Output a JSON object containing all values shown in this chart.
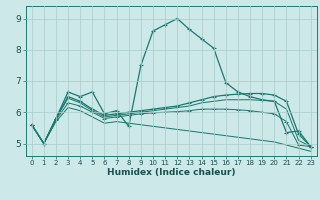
{
  "xlabel": "Humidex (Indice chaleur)",
  "bg_color": "#cce8e8",
  "grid_color": "#aacccc",
  "line_color": "#1a7a6e",
  "xlim": [
    -0.5,
    23.5
  ],
  "ylim": [
    4.6,
    9.4
  ],
  "xticks": [
    0,
    1,
    2,
    3,
    4,
    5,
    6,
    7,
    8,
    9,
    10,
    11,
    12,
    13,
    14,
    15,
    16,
    17,
    18,
    19,
    20,
    21,
    22,
    23
  ],
  "yticks": [
    5,
    6,
    7,
    8,
    9
  ],
  "line_peak": {
    "x": [
      0,
      1,
      2,
      3,
      4,
      5,
      6,
      7,
      8,
      9,
      10,
      11,
      12,
      13,
      14,
      15,
      16,
      17,
      18,
      19,
      20,
      21,
      22,
      23
    ],
    "y": [
      5.6,
      5.0,
      5.8,
      6.65,
      6.5,
      6.65,
      5.95,
      6.05,
      5.55,
      7.5,
      8.6,
      8.8,
      9.0,
      8.65,
      8.35,
      8.05,
      6.95,
      6.65,
      6.5,
      6.4,
      6.35,
      5.35,
      5.4,
      4.9
    ]
  },
  "line_up1": {
    "x": [
      0,
      1,
      2,
      3,
      4,
      5,
      6,
      7,
      8,
      9,
      10,
      11,
      12,
      13,
      14,
      15,
      16,
      17,
      18,
      19,
      20,
      21,
      22,
      23
    ],
    "y": [
      5.6,
      5.0,
      5.8,
      6.5,
      6.35,
      6.1,
      5.9,
      5.95,
      6.0,
      6.05,
      6.1,
      6.15,
      6.2,
      6.3,
      6.4,
      6.5,
      6.55,
      6.58,
      6.6,
      6.6,
      6.55,
      6.35,
      5.3,
      4.9
    ]
  },
  "line_up2": {
    "x": [
      0,
      1,
      2,
      3,
      4,
      5,
      6,
      7,
      8,
      9,
      10,
      11,
      12,
      13,
      14,
      15,
      16,
      17,
      18,
      19,
      20,
      21,
      22,
      23
    ],
    "y": [
      5.6,
      5.0,
      5.8,
      6.45,
      6.3,
      6.05,
      5.85,
      5.9,
      5.95,
      6.0,
      6.05,
      6.1,
      6.15,
      6.2,
      6.3,
      6.35,
      6.4,
      6.4,
      6.4,
      6.38,
      6.35,
      6.1,
      5.1,
      4.9
    ]
  },
  "line_flat": {
    "x": [
      0,
      1,
      2,
      3,
      4,
      5,
      6,
      7,
      8,
      9,
      10,
      11,
      12,
      13,
      14,
      15,
      16,
      17,
      18,
      19,
      20,
      21,
      22,
      23
    ],
    "y": [
      5.6,
      5.0,
      5.75,
      6.3,
      6.2,
      6.0,
      5.8,
      5.85,
      5.9,
      5.95,
      5.98,
      6.0,
      6.02,
      6.05,
      6.1,
      6.1,
      6.1,
      6.08,
      6.05,
      6.0,
      5.95,
      5.7,
      4.95,
      4.9
    ]
  },
  "line_down": {
    "x": [
      0,
      1,
      2,
      3,
      4,
      5,
      6,
      7,
      8,
      9,
      10,
      11,
      12,
      13,
      14,
      15,
      16,
      17,
      18,
      19,
      20,
      21,
      22,
      23
    ],
    "y": [
      5.6,
      5.0,
      5.7,
      6.15,
      6.05,
      5.85,
      5.65,
      5.7,
      5.65,
      5.6,
      5.55,
      5.5,
      5.45,
      5.4,
      5.35,
      5.3,
      5.25,
      5.2,
      5.15,
      5.1,
      5.05,
      4.95,
      4.85,
      4.75
    ]
  }
}
